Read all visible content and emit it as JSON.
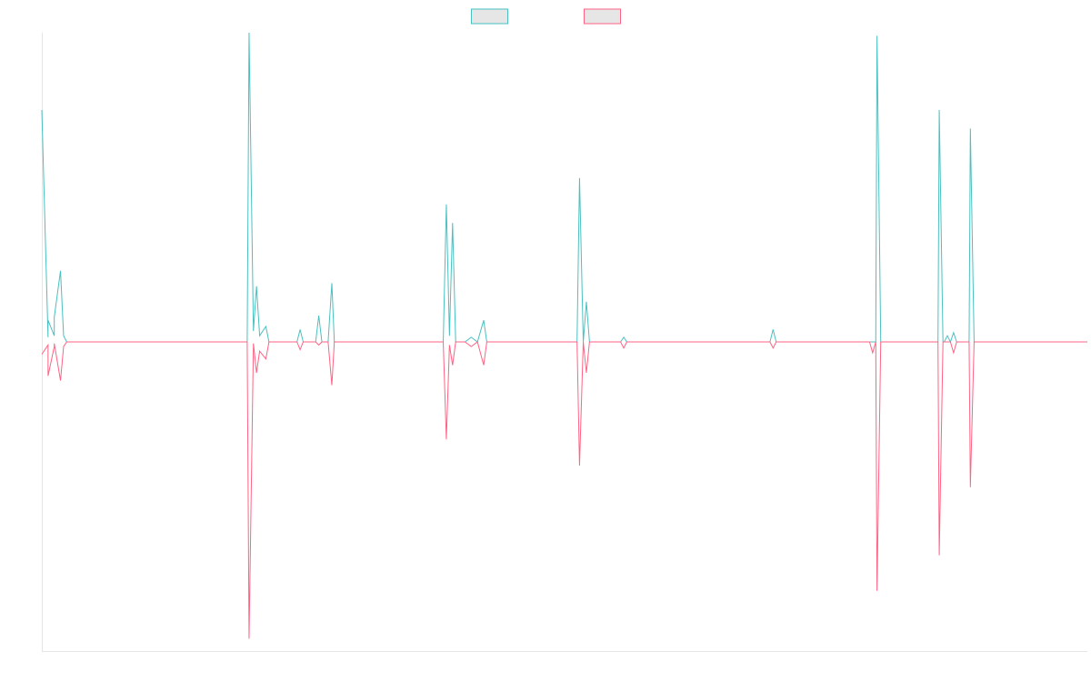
{
  "chart_data": {
    "type": "line",
    "title": "",
    "xlabel": "",
    "ylabel": "",
    "grid": false,
    "legend_placement": "top-center",
    "x_range": [
      0,
      168
    ],
    "ylim": [
      -100,
      100
    ],
    "series": [
      {
        "name": "",
        "color": "#4bc0c0",
        "fill": "#e6e6e6",
        "points": [
          [
            0,
            75
          ],
          [
            1,
            1.5
          ],
          [
            1,
            7
          ],
          [
            2,
            2
          ],
          [
            2,
            8
          ],
          [
            3,
            23
          ],
          [
            3.5,
            2
          ],
          [
            4,
            0
          ],
          [
            5,
            0
          ],
          [
            21,
            0
          ],
          [
            22,
            0
          ],
          [
            26,
            0
          ],
          [
            30,
            0
          ],
          [
            33,
            0
          ],
          [
            33.3,
            100
          ],
          [
            34,
            3.5
          ],
          [
            34.5,
            18
          ],
          [
            35,
            2
          ],
          [
            36,
            5
          ],
          [
            36.5,
            0
          ],
          [
            37,
            0
          ],
          [
            41,
            0
          ],
          [
            41.5,
            4
          ],
          [
            42,
            0
          ],
          [
            44,
            0
          ],
          [
            44.5,
            8.5
          ],
          [
            45,
            0
          ],
          [
            46,
            0
          ],
          [
            46.6,
            19
          ],
          [
            47,
            0
          ],
          [
            49,
            0
          ],
          [
            51,
            0
          ],
          [
            54,
            0
          ],
          [
            58,
            0
          ],
          [
            64,
            0
          ],
          [
            64.5,
            0
          ],
          [
            65,
            44.5
          ],
          [
            65.5,
            2
          ],
          [
            66,
            38.5
          ],
          [
            66.5,
            0
          ],
          [
            67,
            0
          ],
          [
            68,
            0
          ],
          [
            69,
            1.5
          ],
          [
            70,
            0
          ],
          [
            71,
            7
          ],
          [
            71.5,
            0
          ],
          [
            72,
            0
          ],
          [
            79,
            0
          ],
          [
            82,
            0
          ],
          [
            86,
            0
          ],
          [
            86.4,
            53
          ],
          [
            87,
            0
          ],
          [
            87.5,
            13
          ],
          [
            88,
            0
          ],
          [
            93,
            0
          ],
          [
            93.5,
            1.5
          ],
          [
            94,
            0
          ],
          [
            105,
            0
          ],
          [
            117,
            0
          ],
          [
            117.5,
            4
          ],
          [
            118,
            0
          ],
          [
            130,
            0
          ],
          [
            133,
            0
          ],
          [
            134,
            0
          ],
          [
            134.2,
            99
          ],
          [
            134.8,
            0
          ],
          [
            143,
            0
          ],
          [
            144,
            0
          ],
          [
            144.2,
            75
          ],
          [
            144.8,
            0
          ],
          [
            145,
            0
          ],
          [
            145.5,
            2
          ],
          [
            146,
            0
          ],
          [
            146.5,
            3
          ],
          [
            147,
            0
          ],
          [
            149,
            0
          ],
          [
            149.2,
            69
          ],
          [
            149.8,
            0
          ],
          [
            168,
            0
          ]
        ]
      },
      {
        "name": "",
        "color": "#ff6384",
        "fill": "#e6e6e6",
        "points": [
          [
            0,
            -4
          ],
          [
            1,
            -1
          ],
          [
            1,
            -11
          ],
          [
            2,
            -1.5
          ],
          [
            2,
            -0.5
          ],
          [
            3,
            -12.5
          ],
          [
            3.5,
            -1.5
          ],
          [
            4,
            0
          ],
          [
            5,
            0
          ],
          [
            21,
            0
          ],
          [
            22,
            0
          ],
          [
            26,
            0
          ],
          [
            30,
            0
          ],
          [
            33,
            0
          ],
          [
            33.3,
            -96
          ],
          [
            34,
            -0.5
          ],
          [
            34.5,
            -10
          ],
          [
            35,
            -3
          ],
          [
            36,
            -5.5
          ],
          [
            36.5,
            0
          ],
          [
            37,
            0
          ],
          [
            41,
            0
          ],
          [
            41.5,
            -2.5
          ],
          [
            42,
            0
          ],
          [
            44,
            0
          ],
          [
            44.5,
            -1
          ],
          [
            45,
            0
          ],
          [
            46,
            0
          ],
          [
            46.6,
            -14
          ],
          [
            47,
            0
          ],
          [
            49,
            0
          ],
          [
            51,
            0
          ],
          [
            54,
            0
          ],
          [
            58,
            0
          ],
          [
            64,
            0
          ],
          [
            64.5,
            0
          ],
          [
            65,
            -31.5
          ],
          [
            65.5,
            -1
          ],
          [
            66,
            -7.5
          ],
          [
            66.5,
            0
          ],
          [
            67,
            0
          ],
          [
            68,
            0
          ],
          [
            69,
            -1.5
          ],
          [
            70,
            0
          ],
          [
            71,
            -7.5
          ],
          [
            71.5,
            0
          ],
          [
            72,
            0
          ],
          [
            79,
            0
          ],
          [
            82,
            0
          ],
          [
            86,
            0
          ],
          [
            86.4,
            -40
          ],
          [
            87,
            0
          ],
          [
            87.5,
            -10
          ],
          [
            88,
            0
          ],
          [
            93,
            0
          ],
          [
            93.5,
            -2
          ],
          [
            94,
            0
          ],
          [
            105,
            0
          ],
          [
            117,
            0
          ],
          [
            117.5,
            -2
          ],
          [
            118,
            0
          ],
          [
            130,
            0
          ],
          [
            133,
            0
          ],
          [
            133.5,
            -3.5
          ],
          [
            134,
            0
          ],
          [
            134.2,
            -80.5
          ],
          [
            134.8,
            0
          ],
          [
            143,
            0
          ],
          [
            144,
            0
          ],
          [
            144.2,
            -69
          ],
          [
            144.8,
            0
          ],
          [
            145,
            0
          ],
          [
            145.5,
            0
          ],
          [
            146,
            0
          ],
          [
            146.5,
            -3.5
          ],
          [
            147,
            0
          ],
          [
            149,
            0
          ],
          [
            149.2,
            -47
          ],
          [
            149.8,
            0
          ],
          [
            168,
            0
          ]
        ]
      }
    ]
  }
}
